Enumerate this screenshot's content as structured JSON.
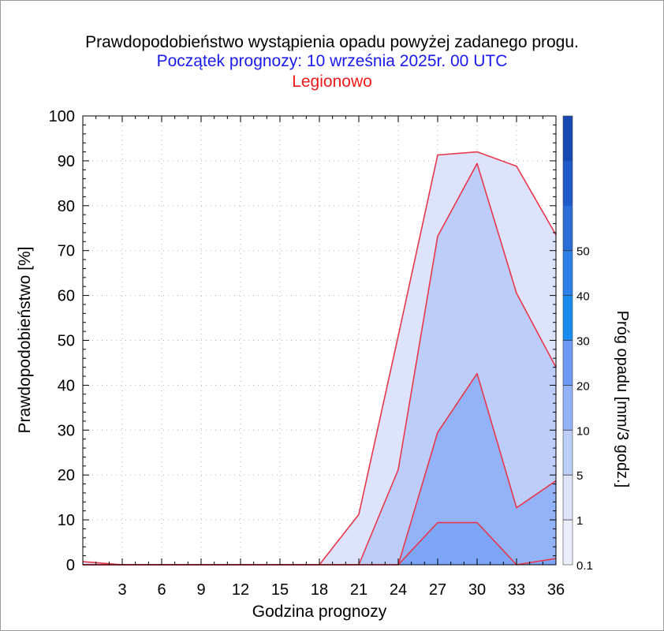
{
  "titles": {
    "line1": "Prawdopodobieństwo wystąpienia opadu powyżej zadanego progu.",
    "line2": "Początek prognozy: 10 września 2025r. 00 UTC",
    "line3": "Legionowo"
  },
  "chart_data": {
    "type": "area",
    "xlabel": "Godzina prognozy",
    "ylabel": "Prawdopodobieństwo [%]",
    "xlim": [
      0,
      36
    ],
    "ylim": [
      0,
      100
    ],
    "x_ticks": [
      3,
      6,
      9,
      12,
      15,
      18,
      21,
      24,
      27,
      30,
      33,
      36
    ],
    "y_ticks": [
      0,
      10,
      20,
      30,
      40,
      50,
      60,
      70,
      80,
      90,
      100
    ],
    "grid": true,
    "x": [
      0,
      3,
      6,
      9,
      12,
      15,
      18,
      21,
      24,
      27,
      30,
      33,
      36
    ],
    "series": [
      {
        "threshold": "0.1",
        "color": "#dde3fb",
        "values": [
          0.7,
          0,
          0,
          0,
          0,
          0,
          0,
          11.2,
          51,
          91.3,
          92,
          88.8,
          73.5
        ]
      },
      {
        "threshold": "1",
        "color": "#bccdf9",
        "values": [
          0,
          0,
          0,
          0,
          0,
          0,
          0,
          0,
          21.2,
          73.2,
          89.4,
          60.5,
          44
        ]
      },
      {
        "threshold": "5",
        "color": "#94b2f8",
        "values": [
          0,
          0,
          0,
          0,
          0,
          0,
          0,
          0,
          0,
          29.5,
          42.6,
          12.7,
          18.7
        ]
      },
      {
        "threshold": "10",
        "color": "#7da6f6",
        "values": [
          0,
          0,
          0,
          0,
          0,
          0,
          0,
          0,
          0,
          9.4,
          9.4,
          0,
          1.4
        ]
      }
    ],
    "colorbar": {
      "label": "Próg opadu [mm/3 godz.]",
      "tick_labels": [
        "0.1",
        "1",
        "5",
        "10",
        "20",
        "30",
        "40",
        "50"
      ],
      "colors": [
        "#e9edfc",
        "#dde3fb",
        "#bccdf9",
        "#94b2f8",
        "#6f9af4",
        "#1a8cef",
        "#2e7ee8",
        "#2a6ed7",
        "#1f5bc8",
        "#1749b0"
      ]
    },
    "line_color": "#e8374b"
  }
}
